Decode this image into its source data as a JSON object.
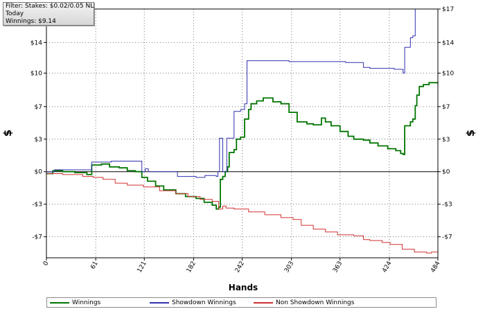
{
  "info": {
    "filter": "Filter: Stakes: $0.02/0.05 NL",
    "period": "Today",
    "winnings": "Winnings: $9.14"
  },
  "chart_data": {
    "type": "line",
    "xlabel": "Hands",
    "ylabel_left": "$",
    "ylabel_right": "$",
    "xlim": [
      0,
      484
    ],
    "ylim": [
      -9,
      17
    ],
    "x_ticks": [
      {
        "value": 0,
        "label": "0"
      },
      {
        "value": 61,
        "label": "61"
      },
      {
        "value": 121,
        "label": "121"
      },
      {
        "value": 182,
        "label": "182"
      },
      {
        "value": 242,
        "label": "242"
      },
      {
        "value": 303,
        "label": "303"
      },
      {
        "value": 363,
        "label": "363"
      },
      {
        "value": 424,
        "label": "424"
      },
      {
        "value": 484,
        "label": "484"
      }
    ],
    "y_ticks": [
      {
        "value": 17,
        "label": "$17"
      },
      {
        "value": 13.5,
        "label": "$14"
      },
      {
        "value": 10.3,
        "label": "$10"
      },
      {
        "value": 6.8,
        "label": "$7"
      },
      {
        "value": 3.4,
        "label": "$3"
      },
      {
        "value": 0,
        "label": "$0"
      },
      {
        "value": -3.4,
        "label": "-$3"
      },
      {
        "value": -6.8,
        "label": "-$7"
      }
    ],
    "grid": true,
    "legend_position": "bottom",
    "series": [
      {
        "name": "Winnings",
        "color": "#007400",
        "points": [
          [
            0,
            -0.2
          ],
          [
            8,
            0.1
          ],
          [
            20,
            0.0
          ],
          [
            35,
            -0.1
          ],
          [
            50,
            -0.3
          ],
          [
            56,
            0.7
          ],
          [
            68,
            0.8
          ],
          [
            78,
            0.5
          ],
          [
            90,
            0.4
          ],
          [
            100,
            0.1
          ],
          [
            110,
            0.0
          ],
          [
            118,
            -0.6
          ],
          [
            125,
            -1.0
          ],
          [
            135,
            -1.5
          ],
          [
            145,
            -1.9
          ],
          [
            160,
            -2.3
          ],
          [
            172,
            -2.6
          ],
          [
            185,
            -2.8
          ],
          [
            195,
            -3.2
          ],
          [
            205,
            -3.5
          ],
          [
            210,
            -3.9
          ],
          [
            213,
            -3.7
          ],
          [
            215,
            -0.8
          ],
          [
            218,
            -0.5
          ],
          [
            221,
            0.0
          ],
          [
            224,
            0.5
          ],
          [
            226,
            2.0
          ],
          [
            232,
            2.3
          ],
          [
            235,
            3.4
          ],
          [
            240,
            3.6
          ],
          [
            245,
            5.5
          ],
          [
            250,
            6.5
          ],
          [
            253,
            7.1
          ],
          [
            260,
            7.4
          ],
          [
            268,
            7.7
          ],
          [
            280,
            7.3
          ],
          [
            290,
            7.1
          ],
          [
            300,
            6.2
          ],
          [
            310,
            5.2
          ],
          [
            322,
            5.0
          ],
          [
            330,
            4.9
          ],
          [
            340,
            5.6
          ],
          [
            345,
            5.2
          ],
          [
            352,
            4.8
          ],
          [
            363,
            4.2
          ],
          [
            373,
            3.7
          ],
          [
            380,
            3.4
          ],
          [
            392,
            3.3
          ],
          [
            400,
            3.0
          ],
          [
            410,
            2.7
          ],
          [
            422,
            2.4
          ],
          [
            432,
            2.2
          ],
          [
            438,
            1.9
          ],
          [
            441,
            1.8
          ],
          [
            443,
            4.8
          ],
          [
            450,
            5.2
          ],
          [
            453,
            5.5
          ],
          [
            456,
            6.9
          ],
          [
            458,
            8.0
          ],
          [
            461,
            8.9
          ],
          [
            466,
            9.1
          ],
          [
            473,
            9.3
          ],
          [
            484,
            9.14
          ]
        ]
      },
      {
        "name": "Showdown Winnings",
        "color": "#3030b0",
        "points": [
          [
            0,
            0.0
          ],
          [
            10,
            0.2
          ],
          [
            40,
            0.2
          ],
          [
            55,
            0.2
          ],
          [
            56,
            1.0
          ],
          [
            80,
            1.1
          ],
          [
            100,
            1.1
          ],
          [
            117,
            1.1
          ],
          [
            118,
            0.0
          ],
          [
            121,
            0.0
          ],
          [
            122,
            0.3
          ],
          [
            125,
            0.3
          ],
          [
            126,
            0.0
          ],
          [
            160,
            0.0
          ],
          [
            162,
            -0.5
          ],
          [
            185,
            -0.6
          ],
          [
            196,
            -0.4
          ],
          [
            205,
            -0.4
          ],
          [
            210,
            -0.5
          ],
          [
            212,
            0.0
          ],
          [
            214,
            3.5
          ],
          [
            216,
            3.5
          ],
          [
            218,
            0.0
          ],
          [
            221,
            0.0
          ],
          [
            223,
            3.5
          ],
          [
            230,
            3.5
          ],
          [
            232,
            6.3
          ],
          [
            240,
            6.5
          ],
          [
            245,
            7.1
          ],
          [
            248,
            11.6
          ],
          [
            300,
            11.5
          ],
          [
            330,
            11.5
          ],
          [
            350,
            11.5
          ],
          [
            370,
            11.4
          ],
          [
            392,
            10.9
          ],
          [
            400,
            10.8
          ],
          [
            430,
            10.7
          ],
          [
            441,
            10.3
          ],
          [
            443,
            13.0
          ],
          [
            450,
            14.0
          ],
          [
            453,
            14.2
          ],
          [
            456,
            17.5
          ]
        ]
      },
      {
        "name": "Non Showdown Winnings",
        "color": "#d03030",
        "points": [
          [
            0,
            -0.2
          ],
          [
            20,
            -0.3
          ],
          [
            45,
            -0.5
          ],
          [
            58,
            -0.6
          ],
          [
            70,
            -0.8
          ],
          [
            85,
            -1.2
          ],
          [
            100,
            -1.4
          ],
          [
            120,
            -1.6
          ],
          [
            140,
            -2.0
          ],
          [
            160,
            -2.3
          ],
          [
            175,
            -2.6
          ],
          [
            190,
            -2.9
          ],
          [
            205,
            -3.1
          ],
          [
            213,
            -3.9
          ],
          [
            218,
            -3.6
          ],
          [
            222,
            -3.8
          ],
          [
            232,
            -3.9
          ],
          [
            250,
            -4.2
          ],
          [
            270,
            -4.5
          ],
          [
            290,
            -4.8
          ],
          [
            305,
            -5.0
          ],
          [
            315,
            -5.6
          ],
          [
            330,
            -6.0
          ],
          [
            345,
            -6.3
          ],
          [
            360,
            -6.6
          ],
          [
            380,
            -6.7
          ],
          [
            392,
            -7.1
          ],
          [
            400,
            -7.2
          ],
          [
            415,
            -7.4
          ],
          [
            425,
            -7.6
          ],
          [
            440,
            -8.1
          ],
          [
            455,
            -8.4
          ],
          [
            470,
            -8.5
          ],
          [
            476,
            -8.4
          ],
          [
            484,
            -8.2
          ]
        ]
      }
    ]
  }
}
